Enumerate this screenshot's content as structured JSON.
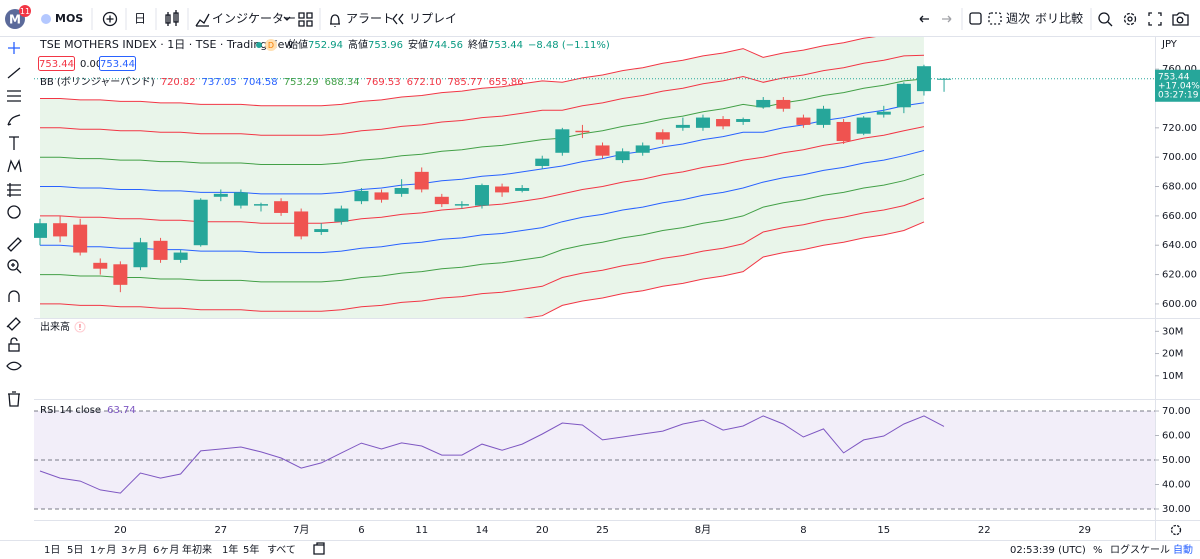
{
  "toolbar": {
    "logo": "M",
    "badge": "11",
    "symbol": "MOS",
    "interval": "日",
    "indicators": "インジケーター",
    "alerts": "アラート",
    "replay": "リプレイ",
    "weekly": "週次",
    "compare": "ボリ比較"
  },
  "legend": {
    "title": "TSE MOTHERS INDEX · 1日 · TSE · TradingView",
    "badge": "D",
    "ohlc": [
      {
        "label": "始値",
        "value": "752.94"
      },
      {
        "label": "高値",
        "value": "753.96"
      },
      {
        "label": "安値",
        "value": "744.56"
      },
      {
        "label": "終値",
        "value": "753.44"
      }
    ],
    "change": "−8.48 (−1.11%)",
    "bid": "753.44",
    "spread": "0.00",
    "ask": "753.44",
    "bb_name": "BB (ボリンジャーバンド)",
    "bb_values": [
      "720.82",
      "737.05",
      "704.58",
      "753.29",
      "688.34",
      "769.53",
      "672.10",
      "785.77",
      "655.86"
    ]
  },
  "chart_data": {
    "type": "candlestick",
    "currency": "JPY",
    "categories": [
      null,
      null,
      null,
      null,
      "20",
      null,
      null,
      null,
      null,
      "27",
      null,
      null,
      null,
      "7月",
      null,
      null,
      "6",
      null,
      null,
      "11",
      null,
      null,
      "14",
      null,
      null,
      "20",
      null,
      null,
      "25",
      null,
      null,
      null,
      null,
      "8月",
      null,
      null,
      null,
      null,
      "8",
      null,
      null,
      null,
      "15",
      null,
      null,
      null,
      null,
      "22",
      null,
      null,
      null,
      null,
      "29"
    ],
    "open": [
      645,
      655,
      654,
      628,
      627,
      625,
      643,
      630,
      640,
      673,
      667,
      667,
      670,
      663,
      649,
      656,
      670,
      676,
      675,
      690,
      673,
      667,
      667,
      680,
      677,
      694,
      703,
      718,
      708,
      698,
      703,
      717,
      720,
      720,
      726,
      724,
      734,
      739,
      727,
      722,
      724,
      716,
      729,
      734,
      745,
      752.94,
      null,
      null,
      null,
      null,
      null,
      null,
      null
    ],
    "high": [
      658,
      660,
      658,
      631,
      629,
      645,
      645,
      637,
      672,
      678,
      678,
      669,
      672,
      665,
      655,
      667,
      679,
      678,
      685,
      693,
      675,
      670,
      682,
      682,
      681,
      701,
      720,
      722,
      710,
      706,
      710,
      719,
      727,
      729,
      728,
      727,
      741,
      741,
      729,
      735,
      726,
      728,
      735,
      751,
      763,
      753.96,
      null,
      null,
      null,
      null,
      null,
      null,
      null
    ],
    "low": [
      640,
      642,
      633,
      620,
      608,
      623,
      628,
      628,
      639,
      670,
      665,
      663,
      660,
      644,
      647,
      654,
      668,
      669,
      673,
      676,
      666,
      665,
      665,
      673,
      676,
      692,
      701,
      713,
      699,
      696,
      701,
      709,
      718,
      718,
      719,
      722,
      733,
      731,
      720,
      720,
      709,
      715,
      727,
      730,
      742,
      744.56,
      null,
      null,
      null,
      null,
      null,
      null,
      null
    ],
    "close": [
      655,
      646,
      635,
      624,
      613,
      642,
      630,
      635,
      671,
      675,
      676,
      668,
      662,
      646,
      651,
      665,
      677,
      671,
      679,
      678,
      668,
      668,
      681,
      676,
      679,
      699,
      719,
      717,
      701,
      704,
      708,
      712,
      722,
      727,
      721,
      726,
      739,
      733,
      722,
      733,
      711,
      727,
      731,
      750,
      762,
      753.44,
      null,
      null,
      null,
      null,
      null,
      null,
      null
    ],
    "up_color": "#26a69a",
    "down_color": "#ef5350",
    "bands": [
      {
        "color": "#f23645",
        "values": [
          660,
          660,
          659,
          659,
          658,
          658,
          657,
          657,
          656,
          656,
          656,
          655,
          655,
          655,
          655,
          656,
          658,
          659,
          661,
          662,
          664,
          665,
          667,
          668,
          670,
          672,
          675,
          678,
          680,
          683,
          685,
          688,
          690,
          693,
          695,
          698,
          700,
          703,
          705,
          708,
          710,
          713,
          715,
          718,
          720.82,
          null,
          null,
          null,
          null,
          null,
          null,
          null,
          null
        ]
      },
      {
        "color": "#2962ff",
        "values": [
          680,
          680,
          679,
          679,
          678,
          678,
          677,
          677,
          676,
          676,
          676,
          675,
          675,
          675,
          675,
          676,
          678,
          679,
          681,
          682,
          684,
          685,
          687,
          688,
          690,
          692,
          694,
          697,
          699,
          702,
          704,
          707,
          709,
          712,
          714,
          717,
          717,
          720,
          722,
          725,
          727,
          730,
          732,
          735,
          737.05,
          null,
          null,
          null,
          null,
          null,
          null,
          null,
          null
        ]
      },
      {
        "color": "#2962ff",
        "values": [
          640,
          640,
          639,
          639,
          638,
          638,
          637,
          637,
          636,
          636,
          636,
          635,
          635,
          635,
          635,
          636,
          638,
          639,
          641,
          642,
          644,
          645,
          647,
          648,
          650,
          652,
          656,
          659,
          661,
          664,
          666,
          669,
          671,
          674,
          676,
          679,
          683,
          686,
          688,
          691,
          693,
          696,
          698,
          701,
          704.58,
          null,
          null,
          null,
          null,
          null,
          null,
          null,
          null
        ]
      },
      {
        "color": "#43a047",
        "values": [
          700,
          700,
          699,
          699,
          698,
          698,
          697,
          697,
          696,
          696,
          696,
          695,
          695,
          695,
          695,
          696,
          698,
          699,
          701,
          702,
          704,
          705,
          707,
          708,
          710,
          712,
          713,
          716,
          718,
          721,
          723,
          726,
          728,
          731,
          733,
          736,
          734,
          737,
          739,
          742,
          744,
          747,
          749,
          752,
          753.29,
          null,
          null,
          null,
          null,
          null,
          null,
          null,
          null
        ]
      },
      {
        "color": "#43a047",
        "values": [
          620,
          620,
          619,
          619,
          618,
          618,
          617,
          617,
          616,
          616,
          616,
          615,
          615,
          615,
          615,
          616,
          618,
          619,
          621,
          622,
          624,
          625,
          627,
          628,
          630,
          632,
          637,
          640,
          642,
          645,
          647,
          650,
          652,
          655,
          657,
          660,
          666,
          669,
          671,
          674,
          676,
          679,
          681,
          684,
          688.34,
          null,
          null,
          null,
          null,
          null,
          null,
          null,
          null
        ]
      },
      {
        "color": "#f23645",
        "values": [
          720,
          720,
          719,
          719,
          718,
          718,
          717,
          717,
          716,
          716,
          716,
          715,
          715,
          715,
          715,
          716,
          718,
          719,
          721,
          722,
          724,
          725,
          727,
          728,
          730,
          732,
          732,
          735,
          737,
          740,
          742,
          745,
          747,
          750,
          752,
          755,
          751,
          754,
          756,
          759,
          761,
          764,
          766,
          769,
          769.53,
          null,
          null,
          null,
          null,
          null,
          null,
          null,
          null
        ]
      },
      {
        "color": "#f23645",
        "values": [
          600,
          600,
          599,
          599,
          598,
          598,
          597,
          597,
          596,
          596,
          596,
          595,
          595,
          595,
          595,
          596,
          598,
          599,
          601,
          602,
          604,
          605,
          607,
          608,
          610,
          612,
          618,
          621,
          623,
          626,
          628,
          631,
          633,
          636,
          638,
          641,
          649,
          652,
          654,
          657,
          659,
          662,
          664,
          667,
          672.1,
          null,
          null,
          null,
          null,
          null,
          null,
          null,
          null
        ]
      },
      {
        "color": "#f23645",
        "values": [
          740,
          740,
          739,
          739,
          738,
          738,
          737,
          737,
          736,
          736,
          736,
          735,
          735,
          735,
          735,
          736,
          738,
          739,
          741,
          742,
          744,
          745,
          747,
          748,
          750,
          752,
          751,
          754,
          756,
          759,
          761,
          764,
          766,
          769,
          771,
          774,
          768,
          771,
          773,
          776,
          778,
          781,
          783,
          786,
          785.77,
          null,
          null,
          null,
          null,
          null,
          null,
          null,
          null
        ]
      },
      {
        "color": "#f23645",
        "values": [
          580,
          580,
          579,
          579,
          578,
          578,
          577,
          577,
          576,
          576,
          576,
          575,
          575,
          575,
          575,
          576,
          578,
          579,
          581,
          582,
          584,
          585,
          587,
          588,
          590,
          592,
          599,
          602,
          604,
          607,
          609,
          612,
          614,
          617,
          619,
          622,
          632,
          635,
          637,
          640,
          642,
          645,
          647,
          650,
          655.86,
          null,
          null,
          null,
          null,
          null,
          null,
          null,
          null
        ]
      }
    ],
    "band_fill": "#4caf50",
    "ylim": [
      590.4,
      781.9
    ],
    "yticks": [
      {
        "value": 760,
        "label": "760.00"
      },
      {
        "value": 740,
        "label": "740.00"
      },
      {
        "value": 720,
        "label": "720.00"
      },
      {
        "value": 700,
        "label": "700.00"
      },
      {
        "value": 680,
        "label": "680.00"
      },
      {
        "value": 660,
        "label": "660.00"
      },
      {
        "value": 640,
        "label": "640.00"
      },
      {
        "value": 620,
        "label": "620.00"
      },
      {
        "value": 600,
        "label": "600.00"
      }
    ],
    "last_price": {
      "value": 753.44,
      "change": "+17.04%",
      "countdown": "03:27:19"
    }
  },
  "volume_chart": {
    "label": "出来高",
    "alert": "!",
    "ylim": [
      0,
      36000000
    ],
    "yticks": [
      {
        "value": 30000000,
        "label": "30M"
      },
      {
        "value": 20000000,
        "label": "20M"
      },
      {
        "value": 10000000,
        "label": "10M"
      }
    ]
  },
  "rsi_chart": {
    "type": "line",
    "label": "RSI 14 close",
    "value_label": "63.74",
    "color": "#7e57c2",
    "values": [
      45.5,
      42.6,
      41.4,
      37.8,
      36.5,
      44.7,
      42.6,
      44.3,
      53.7,
      54.5,
      55.3,
      53.3,
      50.8,
      46.7,
      48.8,
      52.9,
      56.9,
      54.5,
      57,
      55.7,
      52,
      52,
      56.5,
      54,
      56.5,
      60.6,
      65.1,
      64.3,
      58.2,
      59.4,
      60.6,
      61.8,
      64.7,
      66.3,
      62.2,
      63.9,
      68,
      64.7,
      59.4,
      62.7,
      52.9,
      58.2,
      59.8,
      64.7,
      68,
      63.74,
      null,
      null,
      null,
      null,
      null,
      null,
      null
    ],
    "levels": [
      70,
      50,
      30
    ],
    "ylim": [
      25.5,
      74.5
    ],
    "yticks": [
      {
        "value": 70,
        "label": "70.00"
      },
      {
        "value": 60,
        "label": "60.00"
      },
      {
        "value": 50,
        "label": "50.00"
      },
      {
        "value": 40,
        "label": "40.00"
      },
      {
        "value": 30,
        "label": "30.00"
      }
    ]
  },
  "bottom_bar": {
    "ranges": [
      "1日",
      "5日",
      "1ヶ月",
      "3ヶ月",
      "6ヶ月",
      "年初来",
      "1年",
      "5年",
      "すべて"
    ],
    "time": "02:53:39 (UTC)",
    "percent": "%",
    "log": "ログスケール",
    "auto": "自動"
  }
}
